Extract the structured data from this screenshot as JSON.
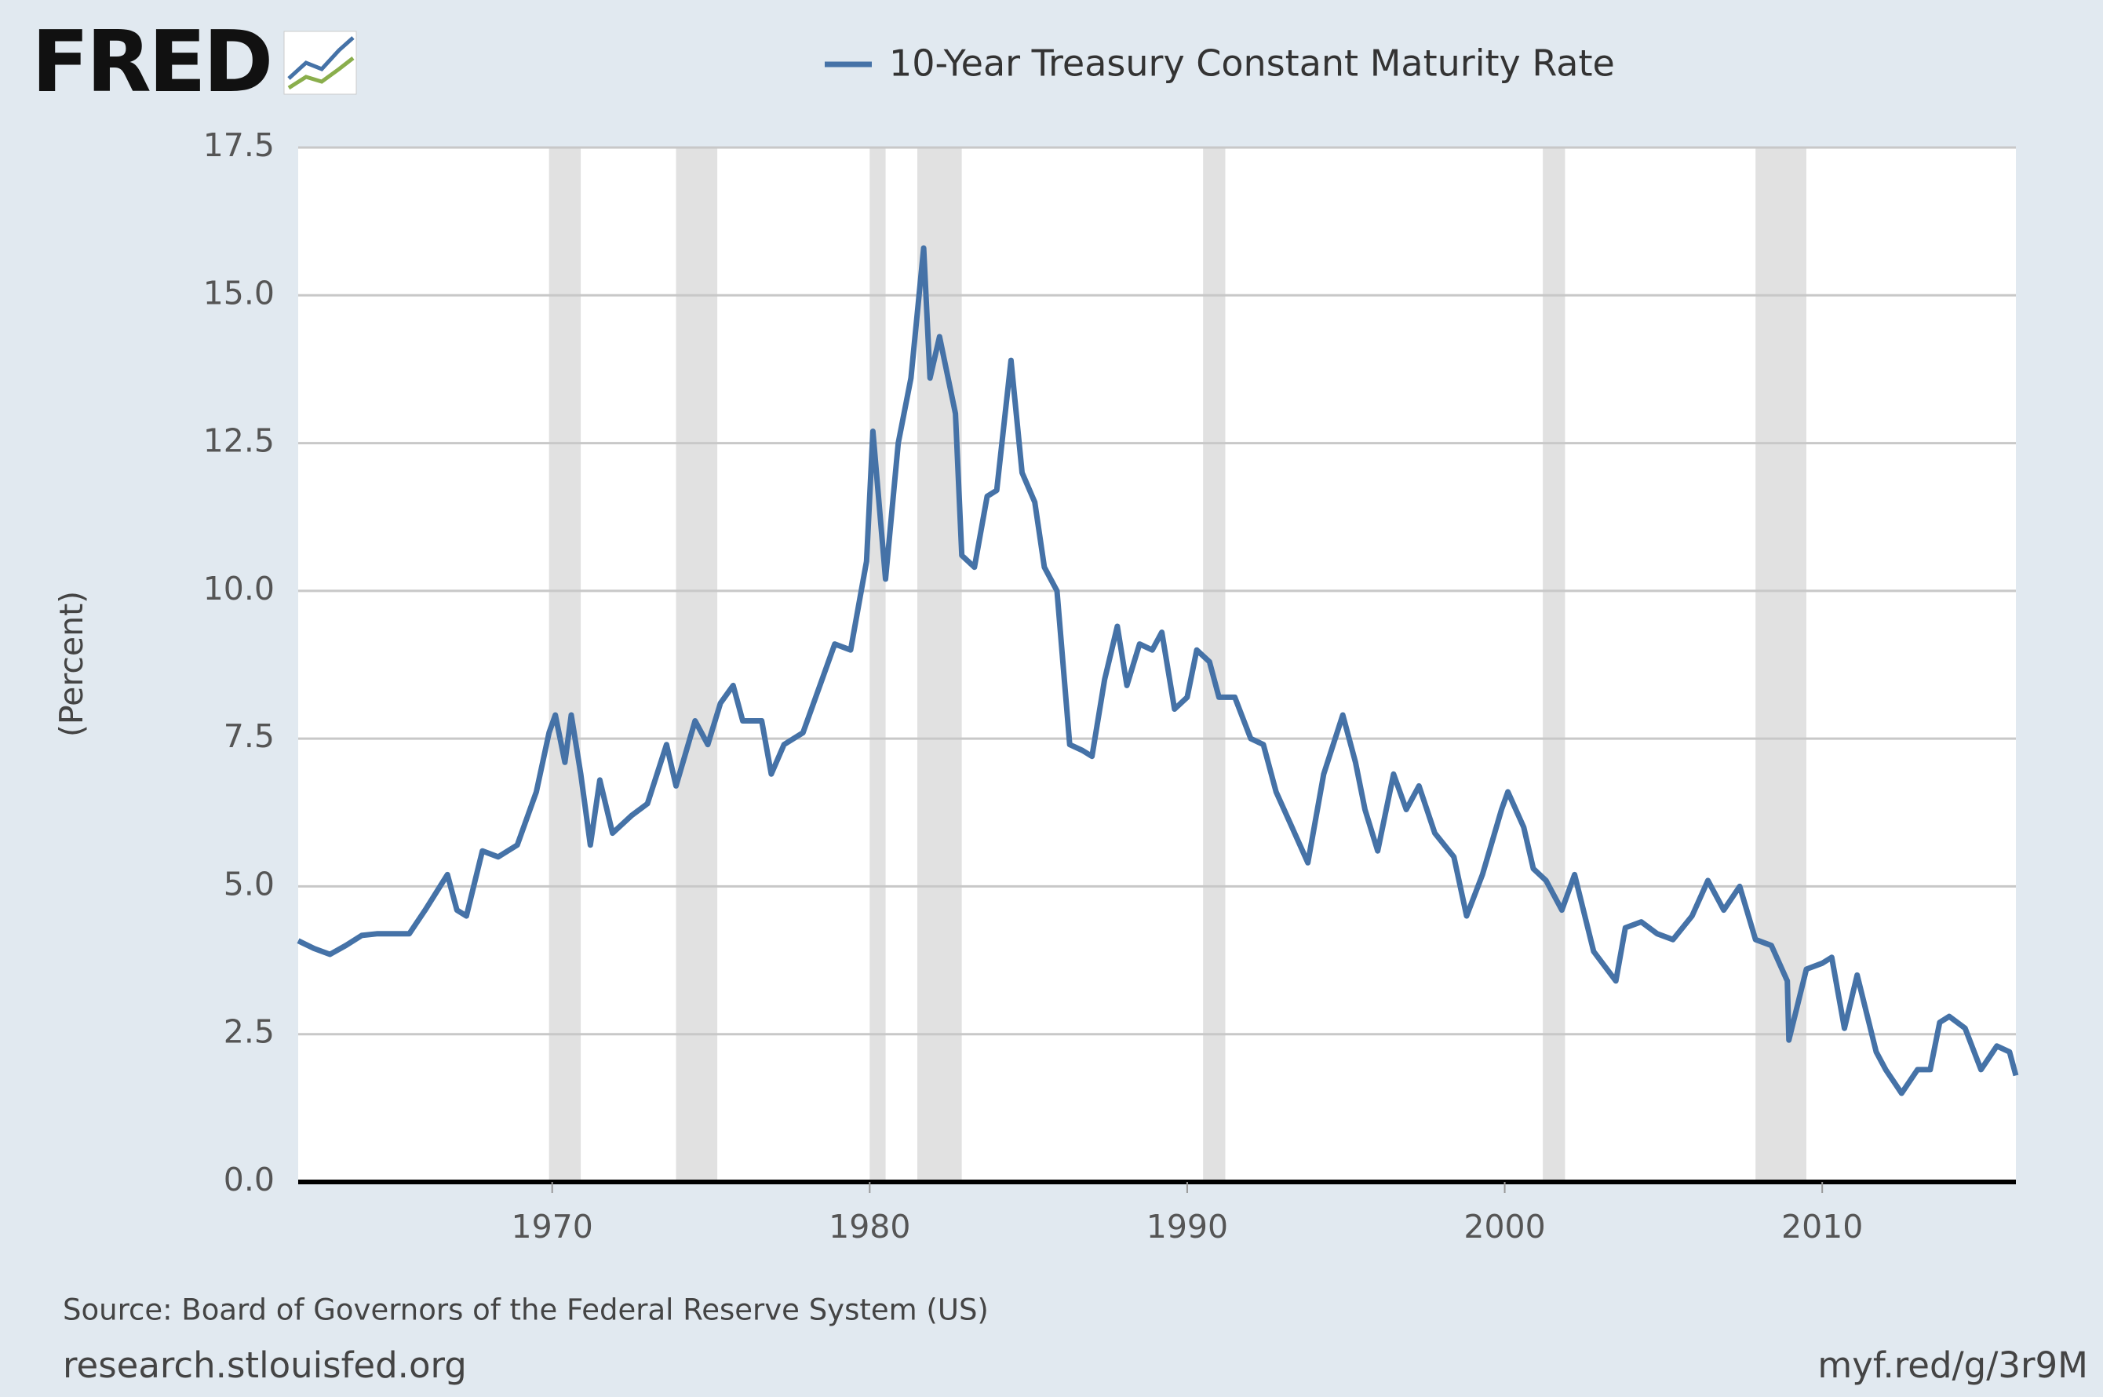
{
  "logo": "FRED",
  "chart_data": {
    "type": "line",
    "title": "10-Year Treasury Constant Maturity Rate",
    "ylabel": "(Percent)",
    "source": "Source: Board of Governors of the Federal Reserve System (US)",
    "site": "research.stlouisfed.org",
    "short_url": "myf.red/g/3r9M",
    "xlim": [
      1962,
      2016.1
    ],
    "xticks": [
      1970,
      1980,
      1990,
      2000,
      2010
    ],
    "ylim": [
      0,
      17.5
    ],
    "yticks": [
      {
        "value": 0,
        "label": "0.0"
      },
      2.5,
      {
        "value": 5,
        "label": "5.0"
      },
      7.5,
      {
        "value": 10,
        "label": "10.0"
      },
      12.5,
      {
        "value": 15,
        "label": "15.0"
      },
      17.5
    ],
    "grid": true,
    "recessions": [
      [
        1969.9,
        1970.9
      ],
      [
        1973.9,
        1975.2
      ],
      [
        1980.0,
        1980.5
      ],
      [
        1981.5,
        1982.9
      ],
      [
        1990.5,
        1991.2
      ],
      [
        2001.2,
        2001.9
      ],
      [
        2007.9,
        2009.5
      ]
    ],
    "recession_color": "#e1e1e1",
    "x": [
      1962.0,
      1962.5,
      1963,
      1963.5,
      1964,
      1964.5,
      1965,
      1965.5,
      1966,
      1966.7,
      1967.0,
      1967.3,
      1967.8,
      1968.3,
      1968.9,
      1969.5,
      1969.9,
      1970.1,
      1970.4,
      1970.6,
      1970.9,
      1971.2,
      1971.5,
      1971.9,
      1972.5,
      1973.0,
      1973.6,
      1973.9,
      1974.5,
      1974.9,
      1975.3,
      1975.7,
      1976.0,
      1976.6,
      1976.9,
      1977.3,
      1977.9,
      1978.5,
      1978.9,
      1979.4,
      1979.9,
      1980.1,
      1980.5,
      1980.9,
      1981.3,
      1981.7,
      1981.9,
      1982.2,
      1982.7,
      1982.9,
      1983.3,
      1983.7,
      1984.0,
      1984.45,
      1984.8,
      1985.2,
      1985.5,
      1985.9,
      1986.3,
      1986.7,
      1987.0,
      1987.4,
      1987.8,
      1988.1,
      1988.5,
      1988.9,
      1989.2,
      1989.6,
      1990.0,
      1990.3,
      1990.7,
      1991.0,
      1991.5,
      1992.0,
      1992.4,
      1992.8,
      1993.3,
      1993.8,
      1994.3,
      1994.9,
      1995.3,
      1995.6,
      1996.0,
      1996.5,
      1996.9,
      1997.3,
      1997.8,
      1998.4,
      1998.8,
      1999.3,
      1999.9,
      2000.1,
      2000.6,
      2000.9,
      2001.3,
      2001.8,
      2002.2,
      2002.8,
      2003.5,
      2003.8,
      2004.3,
      2004.8,
      2005.3,
      2005.9,
      2006.4,
      2006.9,
      2007.4,
      2007.9,
      2008.4,
      2008.9,
      2008.95,
      2009.5,
      2010.0,
      2010.3,
      2010.7,
      2011.1,
      2011.7,
      2012.0,
      2012.5,
      2013.0,
      2013.4,
      2013.7,
      2014.0,
      2014.5,
      2015.0,
      2015.5,
      2015.9,
      2016.1
    ],
    "series": [
      {
        "name": "10-Year Treasury Constant Maturity Rate",
        "color": "#4572a7",
        "values": [
          4.08,
          3.95,
          3.85,
          4.0,
          4.17,
          4.2,
          4.2,
          4.2,
          4.6,
          5.2,
          4.6,
          4.5,
          5.6,
          5.5,
          5.7,
          6.6,
          7.6,
          7.9,
          7.1,
          7.9,
          6.9,
          5.7,
          6.8,
          5.9,
          6.2,
          6.4,
          7.4,
          6.7,
          7.8,
          7.4,
          8.1,
          8.4,
          7.8,
          7.8,
          6.9,
          7.4,
          7.6,
          8.5,
          9.1,
          9.0,
          10.5,
          12.7,
          10.2,
          12.5,
          13.6,
          15.8,
          13.6,
          14.3,
          13.0,
          10.6,
          10.4,
          11.6,
          11.7,
          13.9,
          12.0,
          11.5,
          10.4,
          10.0,
          7.4,
          7.3,
          7.2,
          8.5,
          9.4,
          8.4,
          9.1,
          9.0,
          9.3,
          8.0,
          8.2,
          9.0,
          8.8,
          8.2,
          8.2,
          7.5,
          7.4,
          6.6,
          6.0,
          5.4,
          6.9,
          7.9,
          7.1,
          6.3,
          5.6,
          6.9,
          6.3,
          6.7,
          5.9,
          5.5,
          4.5,
          5.2,
          6.3,
          6.6,
          6.0,
          5.3,
          5.1,
          4.6,
          5.2,
          3.9,
          3.4,
          4.3,
          4.4,
          4.2,
          4.1,
          4.5,
          5.1,
          4.6,
          5.0,
          4.1,
          4.0,
          3.4,
          2.4,
          3.6,
          3.7,
          3.8,
          2.6,
          3.5,
          2.2,
          1.9,
          1.5,
          1.9,
          1.9,
          2.7,
          2.8,
          2.6,
          1.9,
          2.3,
          2.2,
          1.8
        ]
      }
    ]
  }
}
